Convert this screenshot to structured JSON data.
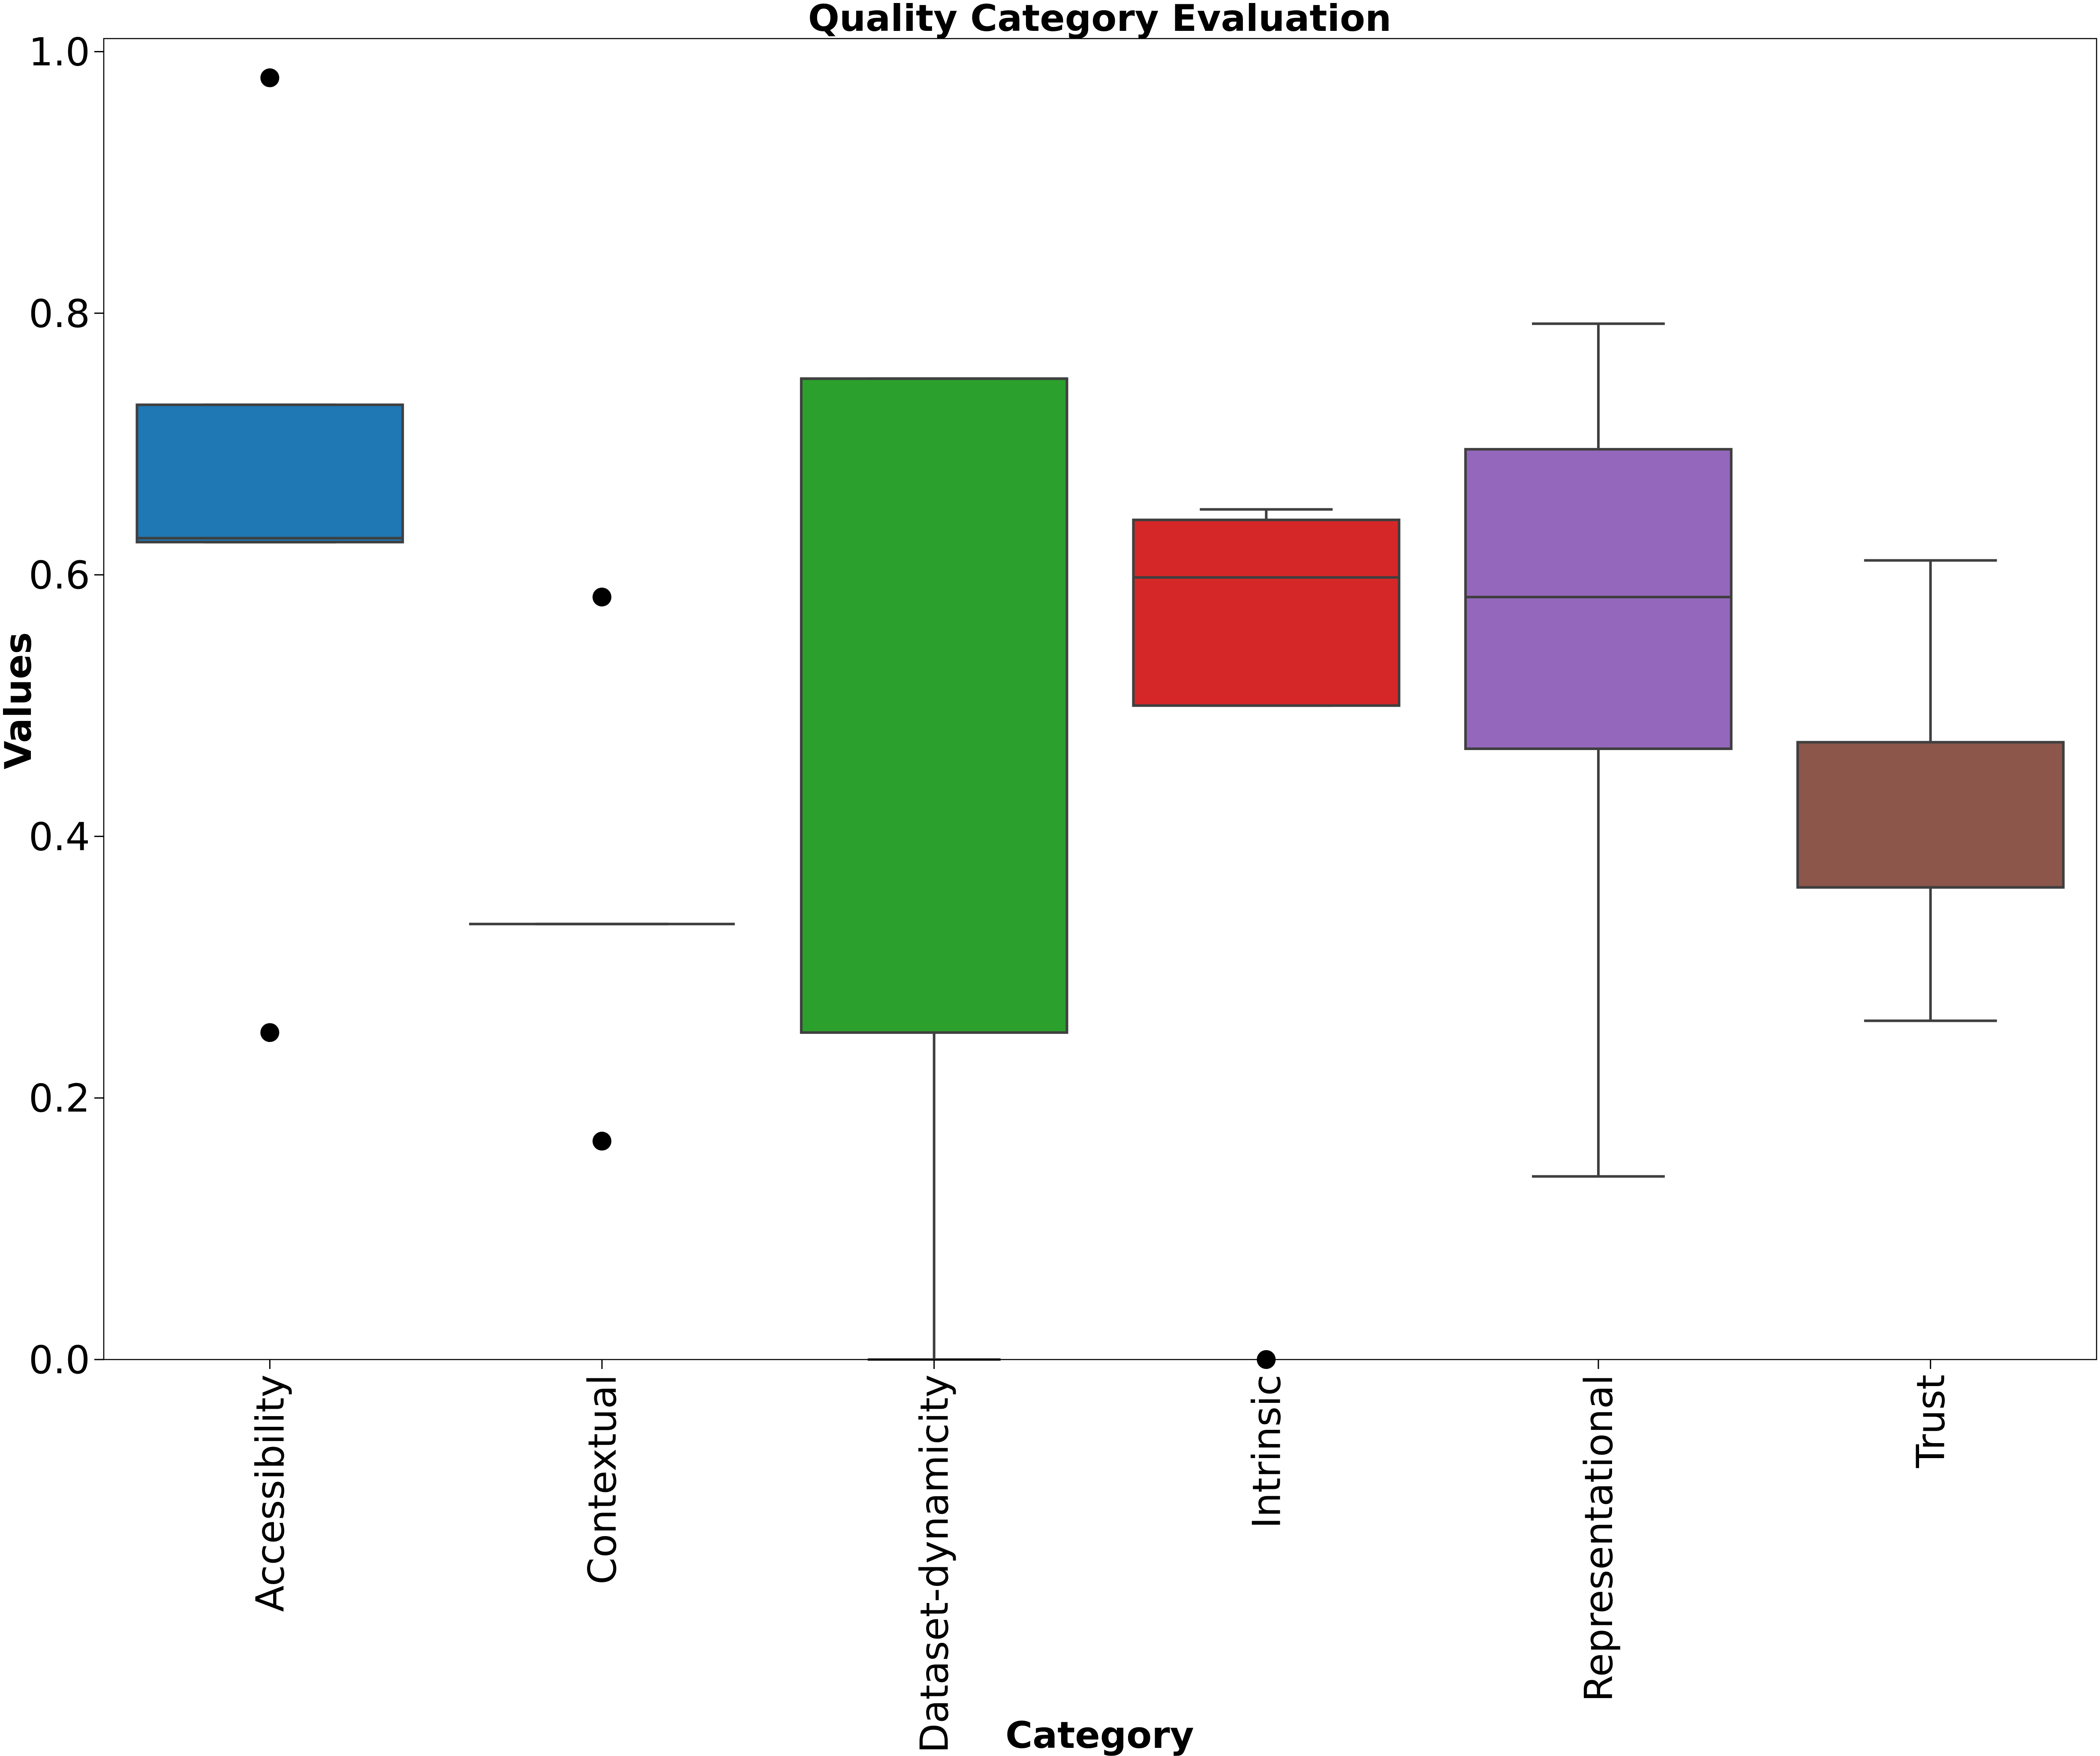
{
  "chart_data": {
    "type": "box",
    "title": "Quality Category Evaluation",
    "xlabel": "Category",
    "ylabel": "Values",
    "ylim": [
      0.0,
      1.01
    ],
    "yticks": [
      0.0,
      0.2,
      0.4,
      0.6,
      0.8,
      1.0
    ],
    "ytick_labels": [
      "0.0",
      "0.2",
      "0.4",
      "0.6",
      "0.8",
      "1.0"
    ],
    "grid": false,
    "categories": [
      "Accessibility",
      "Contextual",
      "Dataset-dynamicity",
      "Intrinsic",
      "Representational",
      "Trust"
    ],
    "colors": [
      "#1f77b4",
      "#ff7f0e",
      "#2ca02c",
      "#d62728",
      "#9467bd",
      "#8c564b"
    ],
    "boxes": [
      {
        "category": "Accessibility",
        "whisker_low": 0.625,
        "q1": 0.625,
        "median": 0.628,
        "q3": 0.73,
        "whisker_high": 0.73,
        "outliers": [
          0.98,
          0.25
        ]
      },
      {
        "category": "Contextual",
        "whisker_low": 0.333,
        "q1": 0.333,
        "median": 0.333,
        "q3": 0.333,
        "whisker_high": 0.333,
        "outliers": [
          0.583,
          0.167
        ]
      },
      {
        "category": "Dataset-dynamicity",
        "whisker_low": 0.0,
        "q1": 0.25,
        "median": 0.75,
        "q3": 0.75,
        "whisker_high": 0.75,
        "outliers": []
      },
      {
        "category": "Intrinsic",
        "whisker_low": 0.5,
        "q1": 0.5,
        "median": 0.598,
        "q3": 0.642,
        "whisker_high": 0.65,
        "outliers": [
          0.0
        ]
      },
      {
        "category": "Representational",
        "whisker_low": 0.14,
        "q1": 0.467,
        "median": 0.583,
        "q3": 0.696,
        "whisker_high": 0.792,
        "outliers": []
      },
      {
        "category": "Trust",
        "whisker_low": 0.259,
        "q1": 0.361,
        "median": 0.361,
        "q3": 0.472,
        "whisker_high": 0.611,
        "outliers": []
      }
    ]
  }
}
